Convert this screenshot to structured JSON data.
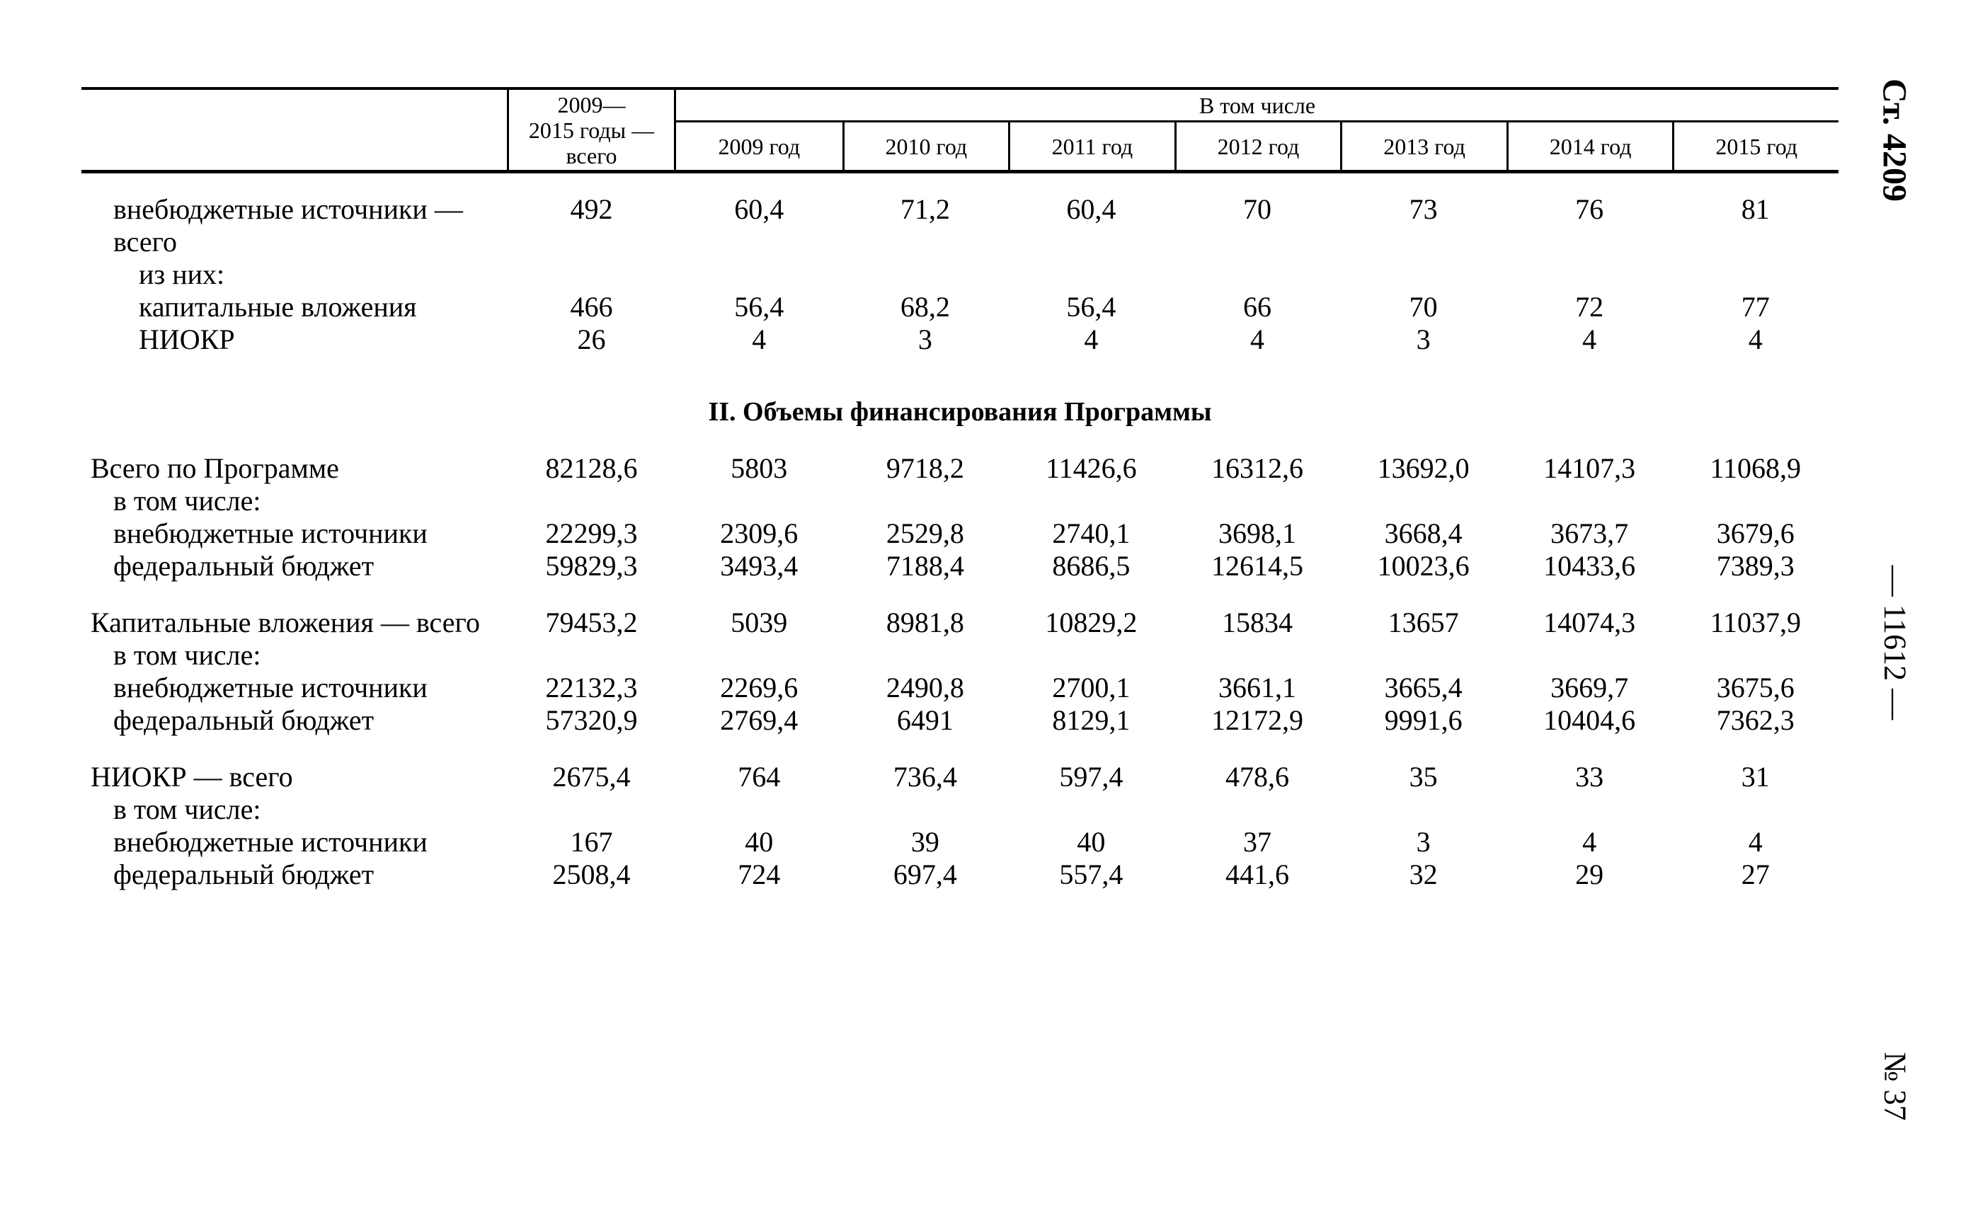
{
  "margins": {
    "article": "Ст. 4209",
    "page_number": "— 11612 —",
    "issue": "№ 37"
  },
  "table": {
    "header": {
      "total_column": [
        "2009—",
        "2015 годы —",
        "всего"
      ],
      "group_label": "В том числе",
      "years": [
        "2009 год",
        "2010 год",
        "2011 год",
        "2012 год",
        "2013 год",
        "2014 год",
        "2015 год"
      ]
    },
    "section1": {
      "rows": [
        {
          "label": "внебюджетные источники —",
          "label2": "всего",
          "indent": 1,
          "values": [
            "492",
            "60,4",
            "71,2",
            "60,4",
            "70",
            "73",
            "76",
            "81"
          ]
        },
        {
          "label": "из них:",
          "indent": 2,
          "values": []
        },
        {
          "label": "капитальные вложения",
          "indent": 2,
          "values": [
            "466",
            "56,4",
            "68,2",
            "56,4",
            "66",
            "70",
            "72",
            "77"
          ]
        },
        {
          "label": "НИОКР",
          "indent": 2,
          "values": [
            "26",
            "4",
            "3",
            "4",
            "4",
            "3",
            "4",
            "4"
          ]
        }
      ]
    },
    "section2": {
      "title": "II. Объемы финансирования Программы",
      "rows": [
        {
          "label": "Всего по Программе",
          "indent": 0,
          "values": [
            "82128,6",
            "5803",
            "9718,2",
            "11426,6",
            "16312,6",
            "13692,0",
            "14107,3",
            "11068,9"
          ]
        },
        {
          "label": "в том числе:",
          "indent": 1,
          "values": []
        },
        {
          "label": "внебюджетные источники",
          "indent": 1,
          "values": [
            "22299,3",
            "2309,6",
            "2529,8",
            "2740,1",
            "3698,1",
            "3668,4",
            "3673,7",
            "3679,6"
          ]
        },
        {
          "label": "федеральный бюджет",
          "indent": 1,
          "values": [
            "59829,3",
            "3493,4",
            "7188,4",
            "8686,5",
            "12614,5",
            "10023,6",
            "10433,6",
            "7389,3"
          ]
        },
        {
          "label": "Капитальные вложения — всего",
          "indent": 0,
          "group_start": true,
          "values": [
            "79453,2",
            "5039",
            "8981,8",
            "10829,2",
            "15834",
            "13657",
            "14074,3",
            "11037,9"
          ]
        },
        {
          "label": "в том числе:",
          "indent": 1,
          "values": []
        },
        {
          "label": "внебюджетные источники",
          "indent": 1,
          "values": [
            "22132,3",
            "2269,6",
            "2490,8",
            "2700,1",
            "3661,1",
            "3665,4",
            "3669,7",
            "3675,6"
          ]
        },
        {
          "label": "федеральный бюджет",
          "indent": 1,
          "values": [
            "57320,9",
            "2769,4",
            "6491",
            "8129,1",
            "12172,9",
            "9991,6",
            "10404,6",
            "7362,3"
          ]
        },
        {
          "label": "НИОКР — всего",
          "indent": 0,
          "group_start": true,
          "values": [
            "2675,4",
            "764",
            "736,4",
            "597,4",
            "478,6",
            "35",
            "33",
            "31"
          ]
        },
        {
          "label": "в том числе:",
          "indent": 1,
          "values": []
        },
        {
          "label": "внебюджетные источники",
          "indent": 1,
          "values": [
            "167",
            "40",
            "39",
            "40",
            "37",
            "3",
            "4",
            "4"
          ]
        },
        {
          "label": "федеральный бюджет",
          "indent": 1,
          "values": [
            "2508,4",
            "724",
            "697,4",
            "557,4",
            "441,6",
            "32",
            "29",
            "27"
          ]
        }
      ]
    }
  }
}
